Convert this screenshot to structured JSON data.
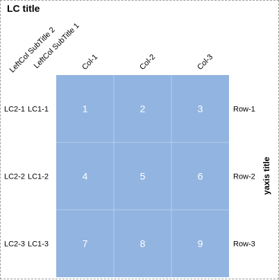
{
  "chart_data": {
    "type": "heatmap",
    "title": "LC title",
    "columns": [
      "Col-1",
      "Col-2",
      "Col-3"
    ],
    "row_labels": [
      "Row-1",
      "Row-2",
      "Row-3"
    ],
    "left_col_subtitles": [
      "LeftCol SubTitle 2",
      "LeftCol SubTitle 1"
    ],
    "left_col_2": [
      "LC2-1",
      "LC2-2",
      "LC2-3"
    ],
    "left_col_1": [
      "LC1-1",
      "LC1-2",
      "LC1-3"
    ],
    "values": [
      [
        1,
        2,
        3
      ],
      [
        4,
        5,
        6
      ],
      [
        7,
        8,
        9
      ]
    ],
    "ylabel": "yaxis title",
    "cell_color": "#92b4e0",
    "grid_color": "#b7cdea",
    "value_color": "#ffffff"
  }
}
